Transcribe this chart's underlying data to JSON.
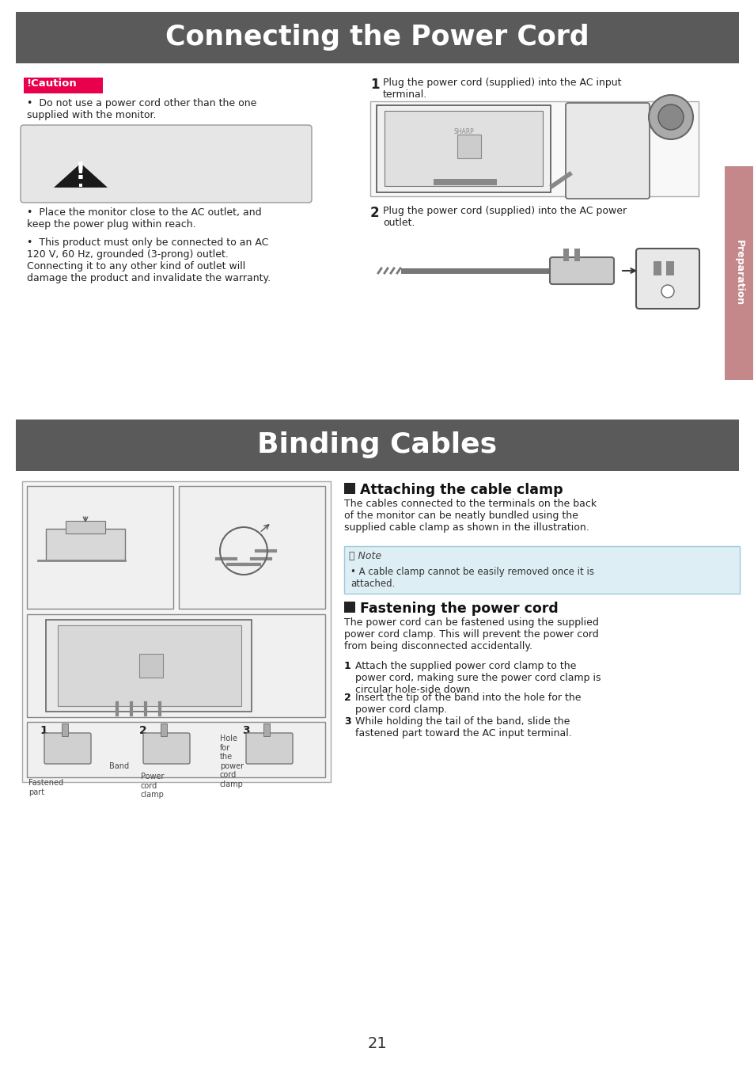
{
  "page_bg": "#ffffff",
  "header1_bg": "#5a5a5a",
  "header1_text": "Connecting the Power Cord",
  "header1_color": "#ffffff",
  "header2_bg": "#5a5a5a",
  "header2_text": "Binding Cables",
  "header2_color": "#ffffff",
  "caution_bg": "#e8004c",
  "caution_text": "!Caution",
  "caution_text_color": "#ffffff",
  "preparation_bg": "#c4878a",
  "preparation_text": "Preparation",
  "preparation_text_color": "#ffffff",
  "step1_label": "1",
  "step1_text": "Plug the power cord (supplied) into the AC input\nterminal.",
  "step2_label": "2",
  "step2_text": "Plug the power cord (supplied) into the AC power\noutlet.",
  "bullet1": "Do not use a power cord other than the one\nsupplied with the monitor.",
  "bullet2": "Place the monitor close to the AC outlet, and\nkeep the power plug within reach.",
  "bullet3": "This product must only be connected to an AC\n120 V, 60 Hz, grounded (3-prong) outlet.\nConnecting it to any other kind of outlet will\ndamage the product and invalidate the warranty.",
  "attaching_title": "Attaching the cable clamp",
  "attaching_body": "The cables connected to the terminals on the back\nof the monitor can be neatly bundled using the\nsupplied cable clamp as shown in the illustration.",
  "note_bg": "#deeef5",
  "note_title": "Note",
  "note_body": "A cable clamp cannot be easily removed once it is\nattached.",
  "fastening_title": "Fastening the power cord",
  "fastening_body": "The power cord can be fastened using the supplied\npower cord clamp. This will prevent the power cord\nfrom being disconnected accidentally.",
  "fstep1": "Attach the supplied power cord clamp to the\npower cord, making sure the power cord clamp is\ncircular hole-side down.",
  "fstep2": "Insert the tip of the band into the hole for the\npower cord clamp.",
  "fstep3": "While holding the tail of the band, slide the\nfastened part toward the AC input terminal.",
  "page_number": "21",
  "body_color": "#222222",
  "body_fs": 9.0
}
